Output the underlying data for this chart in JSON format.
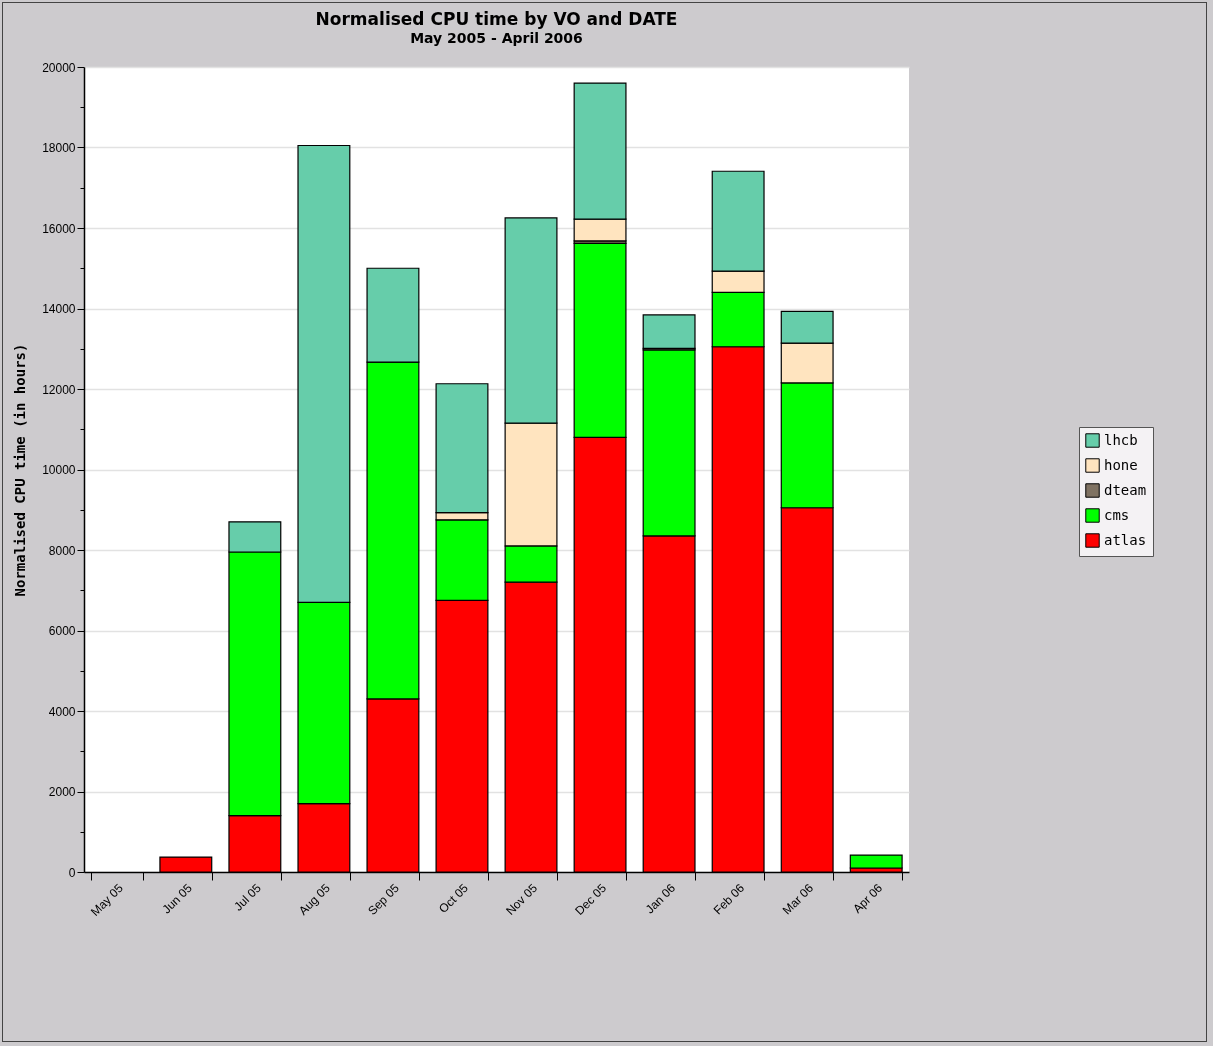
{
  "chart_data": {
    "type": "bar",
    "title": "Normalised CPU time by VO and DATE",
    "subtitle": "May 2005 - April 2006",
    "ylabel": "Normalised CPU time (in hours)",
    "categories": [
      "May 05",
      "Jun 05",
      "Jul 05",
      "Aug 05",
      "Sep 05",
      "Oct 05",
      "Nov 05",
      "Dec 05",
      "Jan 06",
      "Feb 06",
      "Mar 06",
      "Apr 06"
    ],
    "stacked": true,
    "series": [
      {
        "name": "atlas",
        "color": "#ff0000",
        "values": [
          0,
          370,
          1400,
          1700,
          4300,
          6750,
          7200,
          10800,
          8350,
          13050,
          9050,
          100
        ]
      },
      {
        "name": "cms",
        "color": "#00ff00",
        "values": [
          0,
          0,
          6550,
          5000,
          8370,
          2000,
          900,
          4820,
          4620,
          1350,
          3100,
          320
        ]
      },
      {
        "name": "dteam",
        "color": "#7f7262",
        "values": [
          0,
          0,
          0,
          0,
          0,
          0,
          0,
          60,
          40,
          0,
          0,
          0
        ]
      },
      {
        "name": "hone",
        "color": "#ffe4bf",
        "values": [
          0,
          0,
          0,
          0,
          0,
          180,
          3050,
          540,
          0,
          530,
          990,
          0
        ]
      },
      {
        "name": "lhcb",
        "color": "#66cdaa",
        "values": [
          0,
          0,
          750,
          11350,
          2330,
          3200,
          5100,
          3380,
          830,
          2480,
          790,
          0
        ]
      }
    ],
    "ylim": [
      0,
      20000
    ],
    "yticks": [
      0,
      {
        "value": 1000,
        "label": null
      },
      2000,
      {
        "value": 3000,
        "label": null
      },
      4000,
      {
        "value": 5000,
        "label": null
      },
      6000,
      {
        "value": 7000,
        "label": null
      },
      8000,
      {
        "value": 9000,
        "label": null
      },
      10000,
      {
        "value": 11000,
        "label": null
      },
      12000,
      {
        "value": 13000,
        "label": null
      },
      14000,
      {
        "value": 15000,
        "label": null
      },
      16000,
      {
        "value": 17000,
        "label": null
      },
      18000,
      {
        "value": 19000,
        "label": null
      },
      20000
    ],
    "grid": "y",
    "legend": "right"
  }
}
